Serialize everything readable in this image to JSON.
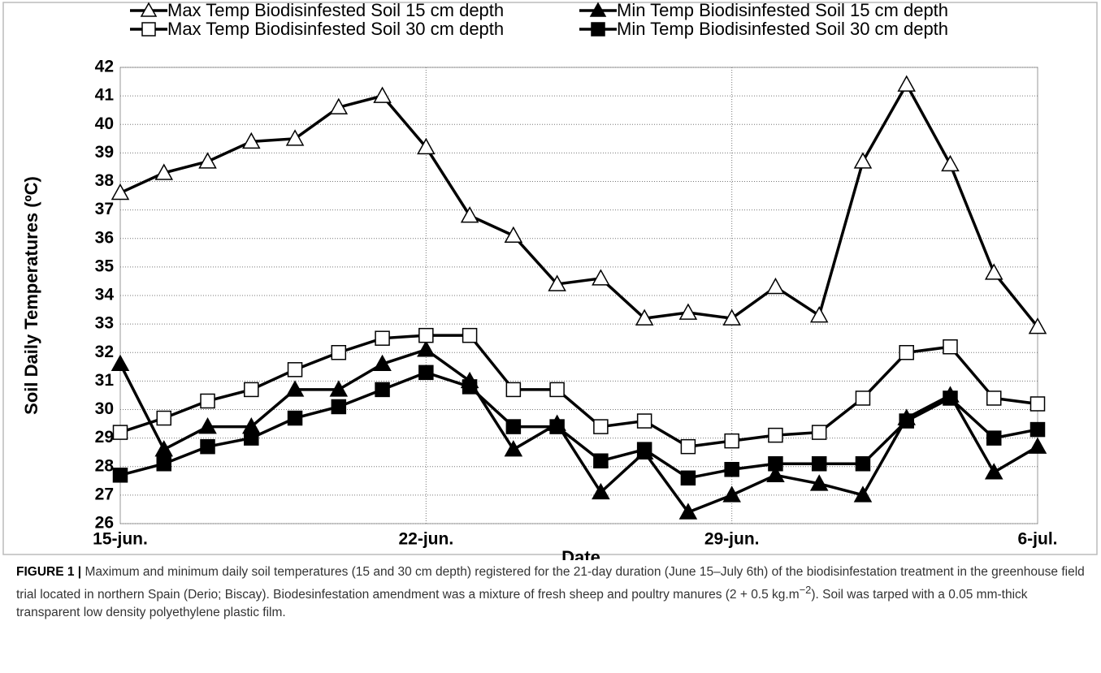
{
  "chart_data": {
    "type": "line",
    "xlabel": "Date",
    "ylabel": "Soil Daily Temperatures (ºC)",
    "categories": [
      "15-jun.",
      null,
      null,
      null,
      null,
      null,
      null,
      "22-jun.",
      null,
      null,
      null,
      null,
      null,
      null,
      "29-jun.",
      null,
      null,
      null,
      null,
      null,
      null,
      "6-jul."
    ],
    "ylim": [
      26,
      42
    ],
    "yticks": [
      26,
      27,
      28,
      29,
      30,
      31,
      32,
      33,
      34,
      35,
      36,
      37,
      38,
      39,
      40,
      41,
      42
    ],
    "grid": true,
    "legend": "top",
    "series": [
      {
        "name": "Max Temp Biodisinfested Soil 15 cm depth",
        "color": "#000000",
        "marker": "triangle",
        "filled": false,
        "values": [
          37.6,
          38.3,
          38.7,
          39.4,
          39.5,
          40.6,
          41.0,
          39.2,
          36.8,
          36.1,
          34.4,
          34.6,
          33.2,
          33.4,
          33.2,
          34.3,
          33.3,
          38.7,
          41.4,
          38.6,
          34.8,
          32.9
        ]
      },
      {
        "name": "Min Temp Biodisinfested Soil 15 cm depth",
        "color": "#000000",
        "marker": "triangle",
        "filled": true,
        "values": [
          31.6,
          28.6,
          29.4,
          29.4,
          30.7,
          30.7,
          31.6,
          32.1,
          31.0,
          28.6,
          29.5,
          27.1,
          28.5,
          26.4,
          27.0,
          27.7,
          27.4,
          27.0,
          29.7,
          30.5,
          27.8,
          28.7
        ]
      },
      {
        "name": "Max Temp Biodisinfested Soil 30 cm depth",
        "color": "#000000",
        "marker": "square",
        "filled": false,
        "values": [
          29.2,
          29.7,
          30.3,
          30.7,
          31.4,
          32.0,
          32.5,
          32.6,
          32.6,
          30.7,
          30.7,
          29.4,
          29.6,
          28.7,
          28.9,
          29.1,
          29.2,
          30.4,
          32.0,
          32.2,
          30.4,
          30.2
        ]
      },
      {
        "name": "Min Temp Biodisinfested Soil 30 cm depth",
        "color": "#000000",
        "marker": "square",
        "filled": true,
        "values": [
          27.7,
          28.1,
          28.7,
          29.0,
          29.7,
          30.1,
          30.7,
          31.3,
          30.8,
          29.4,
          29.4,
          28.2,
          28.6,
          27.6,
          27.9,
          28.1,
          28.1,
          28.1,
          29.6,
          30.4,
          29.0,
          29.3
        ]
      }
    ]
  },
  "caption": {
    "label": "FIGURE 1 |",
    "text": " Maximum and minimum daily soil temperatures (15 and 30 cm depth) registered for the 21-day duration (June 15–July 6th) of the biodisinfestation treatment in the greenhouse field trial located in northern Spain (Derio; Biscay). Biodesinfestation amendment was a mixture of fresh sheep and poultry manures (2 + 0.5 kg.m",
    "superscript": "−2",
    "text_end": "). Soil was tarped with a 0.05 mm-thick transparent low density polyethylene plastic film."
  }
}
